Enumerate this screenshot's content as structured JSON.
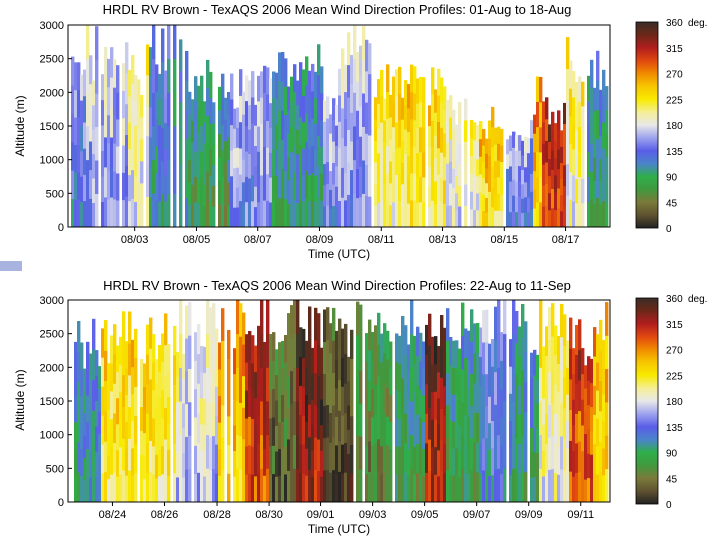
{
  "chart_data": [
    {
      "type": "heatmap",
      "title": "HRDL RV Brown - TexAQS 2006 Mean Wind Direction Profiles: 01-Aug to 18-Aug",
      "xlabel": "Time (UTC)",
      "ylabel": "Altitude (m)",
      "ylim": [
        0,
        3000
      ],
      "yticks": [
        "0",
        "500",
        "1000",
        "1500",
        "2000",
        "2500",
        "3000"
      ],
      "xticks": [
        "08/03",
        "08/05",
        "08/07",
        "08/09",
        "08/11",
        "08/13",
        "08/15",
        "08/17"
      ],
      "xtick_pos": [
        0.123,
        0.237,
        0.35,
        0.464,
        0.578,
        0.691,
        0.805,
        0.918
      ],
      "colorbar": {
        "label": "deg.",
        "ticks": [
          "360",
          "315",
          "270",
          "225",
          "180",
          "135",
          "90",
          "45",
          "0"
        ]
      },
      "segments": [
        {
          "start": 0.0,
          "end": 0.035,
          "dir": 135,
          "top": 3000
        },
        {
          "start": 0.035,
          "end": 0.11,
          "dir": 155,
          "top": 2900
        },
        {
          "start": 0.11,
          "end": 0.15,
          "dir": 190,
          "top": 2600
        },
        {
          "start": 0.15,
          "end": 0.225,
          "dir": 110,
          "top": 3000
        },
        {
          "start": 0.225,
          "end": 0.3,
          "dir": 85,
          "top": 2400
        },
        {
          "start": 0.3,
          "end": 0.38,
          "dir": 150,
          "top": 2300
        },
        {
          "start": 0.38,
          "end": 0.47,
          "dir": 100,
          "top": 2600
        },
        {
          "start": 0.47,
          "end": 0.5,
          "dir": 150,
          "top": 2200
        },
        {
          "start": 0.5,
          "end": 0.56,
          "dir": 160,
          "top": 3000
        },
        {
          "start": 0.56,
          "end": 0.62,
          "dir": 210,
          "top": 2500
        },
        {
          "start": 0.62,
          "end": 0.7,
          "dir": 225,
          "top": 2300
        },
        {
          "start": 0.7,
          "end": 0.76,
          "dir": 190,
          "top": 1900
        },
        {
          "start": 0.76,
          "end": 0.81,
          "dir": 235,
          "top": 1700
        },
        {
          "start": 0.81,
          "end": 0.86,
          "dir": 140,
          "top": 1600
        },
        {
          "start": 0.86,
          "end": 0.88,
          "dir": 250,
          "top": 2200
        },
        {
          "start": 0.88,
          "end": 0.92,
          "dir": 300,
          "top": 1900
        },
        {
          "start": 0.92,
          "end": 0.96,
          "dir": 200,
          "top": 2800
        },
        {
          "start": 0.96,
          "end": 1.0,
          "dir": 95,
          "top": 2500
        }
      ]
    },
    {
      "type": "heatmap",
      "title": "HRDL RV Brown - TexAQS 2006 Mean Wind Direction Profiles: 22-Aug to 11-Sep",
      "xlabel": "Time (UTC)",
      "ylabel": "Altitude (m)",
      "ylim": [
        0,
        3000
      ],
      "yticks": [
        "0",
        "500",
        "1000",
        "1500",
        "2000",
        "2500",
        "3000"
      ],
      "xticks": [
        "08/24",
        "08/26",
        "08/28",
        "08/30",
        "09/01",
        "09/03",
        "09/05",
        "09/07",
        "09/09",
        "09/11"
      ],
      "xtick_pos": [
        0.082,
        0.178,
        0.275,
        0.371,
        0.466,
        0.562,
        0.658,
        0.754,
        0.85,
        0.946
      ],
      "colorbar": {
        "label": "deg.",
        "ticks": [
          "360",
          "315",
          "270",
          "225",
          "180",
          "135",
          "90",
          "45",
          "0"
        ]
      },
      "segments": [
        {
          "start": 0.0,
          "end": 0.06,
          "dir": 110,
          "top": 2600
        },
        {
          "start": 0.06,
          "end": 0.2,
          "dir": 220,
          "top": 2700
        },
        {
          "start": 0.2,
          "end": 0.28,
          "dir": 175,
          "top": 2900
        },
        {
          "start": 0.28,
          "end": 0.33,
          "dir": 245,
          "top": 3000
        },
        {
          "start": 0.33,
          "end": 0.37,
          "dir": 300,
          "top": 3000
        },
        {
          "start": 0.37,
          "end": 0.42,
          "dir": 40,
          "top": 3000
        },
        {
          "start": 0.42,
          "end": 0.47,
          "dir": 330,
          "top": 3000
        },
        {
          "start": 0.47,
          "end": 0.53,
          "dir": 15,
          "top": 2800
        },
        {
          "start": 0.53,
          "end": 0.6,
          "dir": 60,
          "top": 3000
        },
        {
          "start": 0.6,
          "end": 0.66,
          "dir": 85,
          "top": 2900
        },
        {
          "start": 0.66,
          "end": 0.7,
          "dir": 320,
          "top": 3000
        },
        {
          "start": 0.7,
          "end": 0.76,
          "dir": 90,
          "top": 3000
        },
        {
          "start": 0.76,
          "end": 0.82,
          "dir": 130,
          "top": 3000
        },
        {
          "start": 0.82,
          "end": 0.87,
          "dir": 95,
          "top": 2900
        },
        {
          "start": 0.87,
          "end": 0.93,
          "dir": 200,
          "top": 3000
        },
        {
          "start": 0.93,
          "end": 0.97,
          "dir": 290,
          "top": 2700
        },
        {
          "start": 0.97,
          "end": 1.0,
          "dir": 240,
          "top": 2900
        }
      ]
    }
  ]
}
